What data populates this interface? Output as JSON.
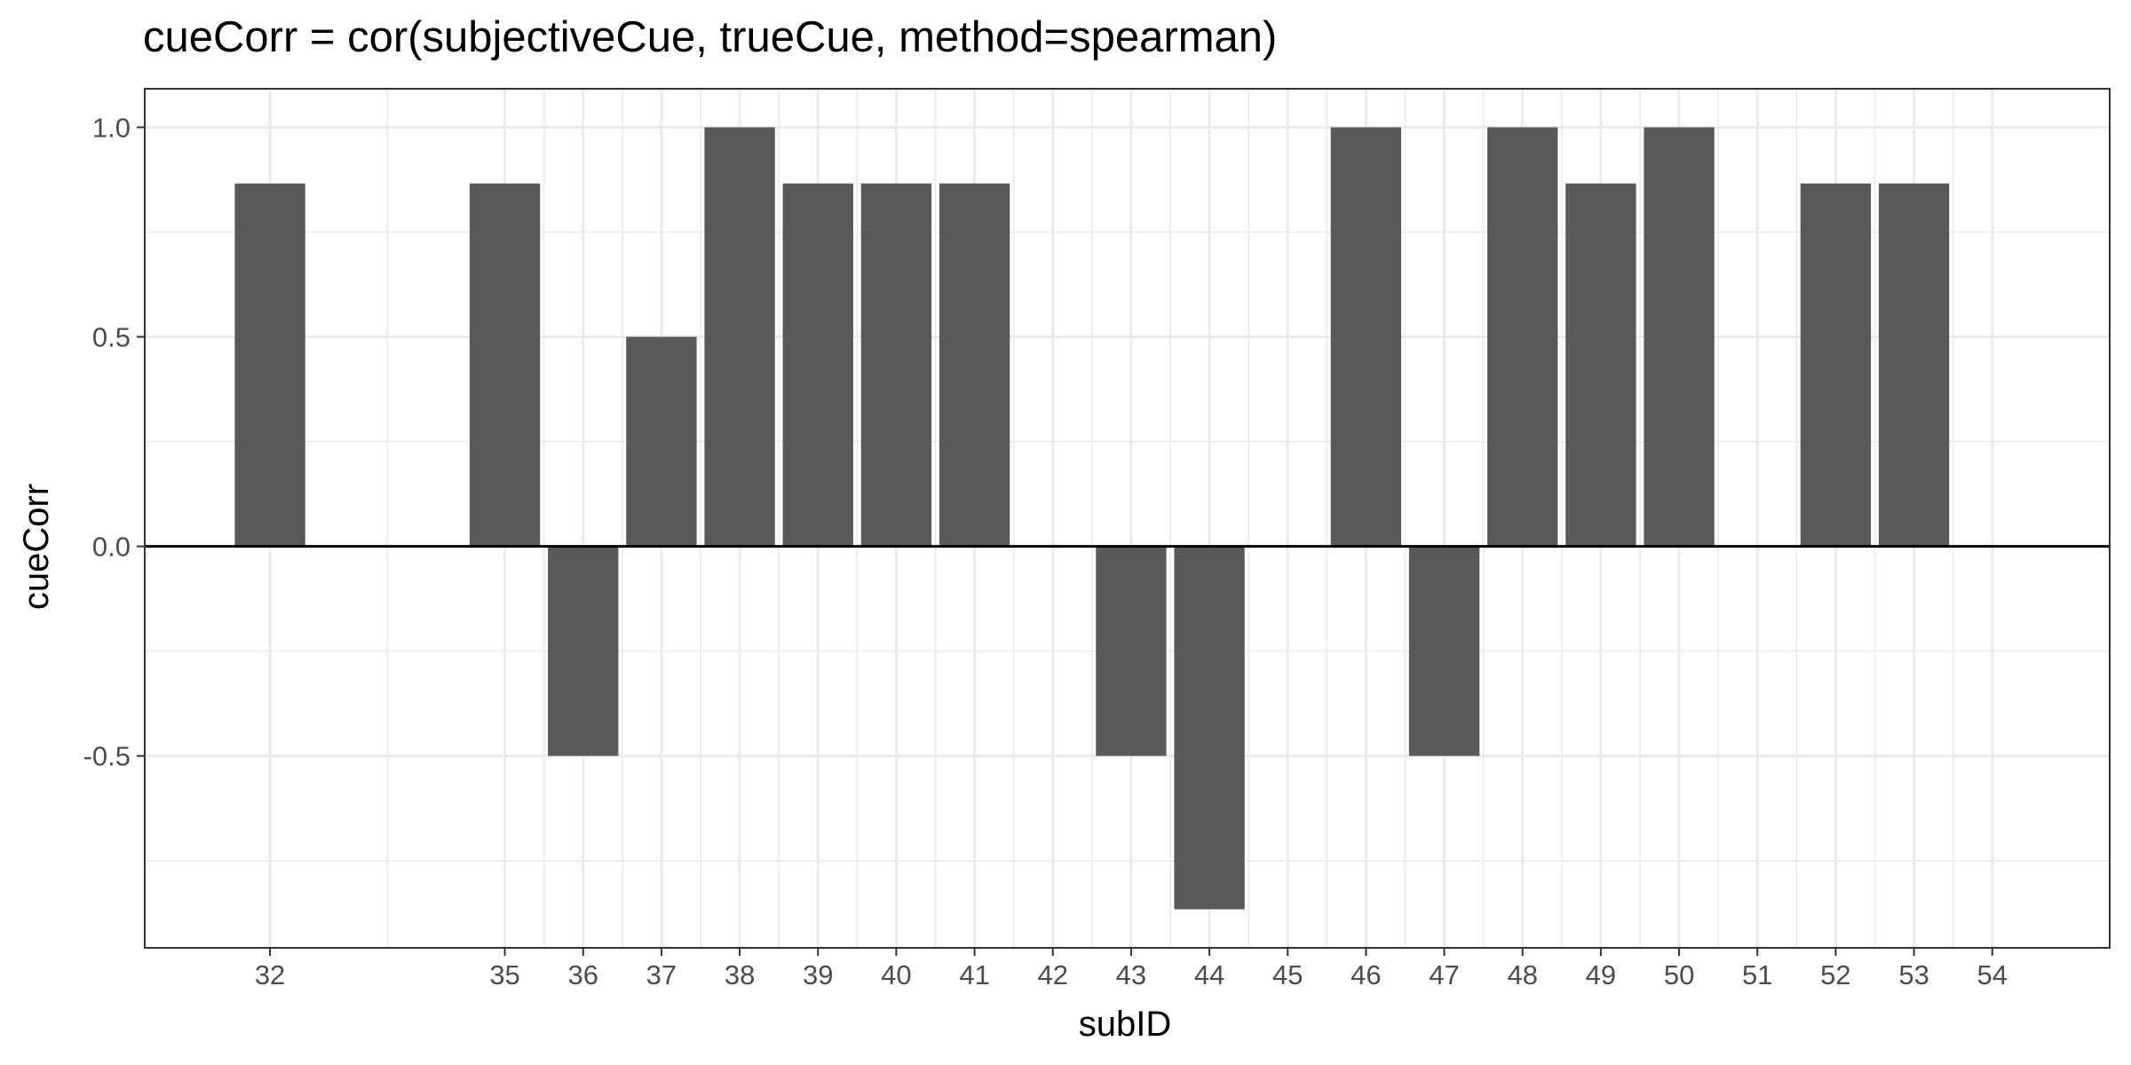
{
  "chart_data": {
    "type": "bar",
    "title": "cueCorr = cor(subjectiveCue, trueCue, method=spearman)",
    "xlabel": "subID",
    "ylabel": "cueCorr",
    "x": [
      32,
      35,
      36,
      37,
      38,
      39,
      40,
      41,
      42,
      43,
      44,
      45,
      46,
      47,
      48,
      49,
      50,
      51,
      52,
      53,
      54
    ],
    "values": [
      0.866,
      0.866,
      -0.5,
      0.5,
      1.0,
      0.866,
      0.866,
      0.866,
      0,
      -0.5,
      -0.866,
      0,
      1.0,
      -0.5,
      1.0,
      0.866,
      1.0,
      0,
      0.866,
      0.866,
      0
    ],
    "xlim": [
      30.4,
      55.5
    ],
    "ylim": [
      -0.958,
      1.092
    ],
    "yticks": [
      -0.5,
      0.0,
      0.5,
      1.0
    ],
    "ytick_labels": [
      "-0.5",
      "0.0",
      "0.5",
      "1.0"
    ],
    "xticks": [
      32,
      35,
      36,
      37,
      38,
      39,
      40,
      41,
      42,
      43,
      44,
      45,
      46,
      47,
      48,
      49,
      50,
      51,
      52,
      53,
      54
    ],
    "grid": true,
    "hline": 0,
    "bar_color": "#595959",
    "grid_color": "#ebebeb",
    "axis_color": "#333333",
    "zero_line_color": "#000000"
  }
}
